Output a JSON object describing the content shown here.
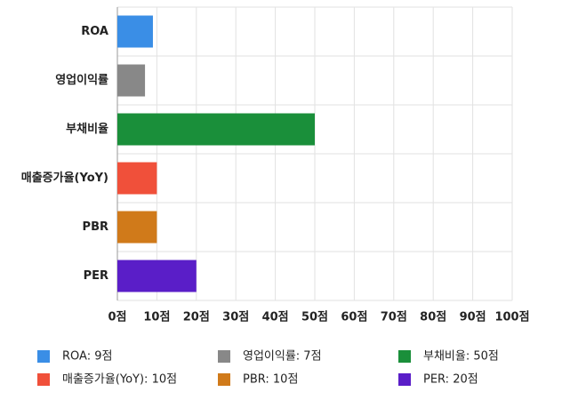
{
  "chart_data": {
    "type": "barh",
    "categories": [
      "ROA",
      "영업이익률",
      "부채비율",
      "매출증가율(YoY)",
      "PBR",
      "PER"
    ],
    "values": [
      9,
      7,
      50,
      10,
      10,
      20
    ],
    "value_labels": [
      "ROA: 9점",
      "영업이익률: 7점",
      "부채비율: 50점",
      "매출증가율(YoY): 10점",
      "PBR: 10점",
      "PER: 20점"
    ],
    "colors": [
      "#3a8ee6",
      "#888888",
      "#1a8f3a",
      "#f0503a",
      "#d07a1a",
      "#5a1ec8"
    ],
    "xlim": [
      0,
      100
    ],
    "xticks": [
      {
        "value": 0,
        "label": "0점"
      },
      {
        "value": 10,
        "label": "10점"
      },
      {
        "value": 20,
        "label": "20점"
      },
      {
        "value": 30,
        "label": "30점"
      },
      {
        "value": 40,
        "label": "40점"
      },
      {
        "value": 50,
        "label": "50점"
      },
      {
        "value": 60,
        "label": "60점"
      },
      {
        "value": 70,
        "label": "70점"
      },
      {
        "value": 80,
        "label": "80점"
      },
      {
        "value": 90,
        "label": "90점"
      },
      {
        "value": 100,
        "label": "100점"
      }
    ],
    "grid": true
  }
}
